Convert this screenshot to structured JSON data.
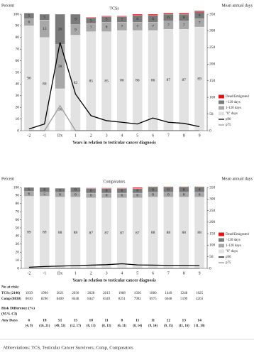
{
  "chart_data": [
    {
      "type": "bar",
      "title": "TCSs",
      "ylabel": "Percent",
      "y2label": "Mean annual days",
      "xlabel": "Years in relation to testicular cancer diagnosis",
      "categories": [
        "-2",
        "-1",
        "Dx",
        "1",
        "2",
        "3",
        "4",
        "5",
        "6",
        "7",
        "8",
        "9"
      ],
      "ylim": [
        0,
        100
      ],
      "yticks": [
        0,
        10,
        20,
        30,
        40,
        50,
        60,
        70,
        80,
        90,
        100
      ],
      "y2lim": [
        0,
        350
      ],
      "y2ticks": [
        0,
        50,
        100,
        150,
        200,
        250,
        300,
        350
      ],
      "stacked": true,
      "series": [
        {
          "name": "Dead/Emigrated",
          "type": "bar",
          "color": "#d7191c",
          "labels": false,
          "values": [
            0,
            0,
            0,
            0,
            0.5,
            0.5,
            0.5,
            1,
            1,
            1,
            1,
            1
          ]
        },
        {
          "name": ">120 days",
          "type": "bar",
          "color": "#7a7a7a",
          "labels": true,
          "values": [
            5,
            5,
            26,
            9,
            5,
            5,
            5,
            6,
            6,
            6,
            6,
            6
          ]
        },
        {
          "name": "1-120 days",
          "type": "bar",
          "color": "#a8a8a8",
          "labels": true,
          "values": [
            6,
            15,
            38,
            9,
            7,
            8,
            7,
            7,
            7,
            7,
            7,
            7
          ]
        },
        {
          "name": "\"0\" days",
          "type": "bar",
          "color": "#e2e2e2",
          "labels": true,
          "values": [
            90,
            80,
            36,
            82,
            85,
            85,
            86,
            86,
            86,
            87,
            87,
            89
          ]
        },
        {
          "name": "p90",
          "type": "line",
          "axis": "y2",
          "color": "#000000",
          "values": [
            5,
            20,
            265,
            110,
            45,
            30,
            25,
            20,
            38,
            25,
            22,
            12
          ]
        },
        {
          "name": "p75",
          "type": "line",
          "axis": "y2",
          "color": "#9a9a9a",
          "values": [
            0,
            0,
            75,
            0,
            0,
            0,
            0,
            0,
            0,
            0,
            0,
            0
          ]
        }
      ]
    },
    {
      "type": "bar",
      "title": "Comparators",
      "ylabel": "Percent",
      "y2label": "Mean annual days",
      "xlabel": "Years in relation to testicular cancer diagnosis",
      "categories": [
        "-2",
        "-1",
        "Dx",
        "1",
        "2",
        "3",
        "4",
        "5",
        "6",
        "7",
        "8",
        "9"
      ],
      "ylim": [
        0,
        100
      ],
      "yticks": [
        0,
        10,
        20,
        30,
        40,
        50,
        60,
        70,
        80,
        90,
        100
      ],
      "y2lim": [
        0,
        350
      ],
      "y2ticks": [
        0,
        50,
        100,
        150,
        200,
        250,
        300,
        350
      ],
      "stacked": true,
      "series": [
        {
          "name": "Dead/Emigrated",
          "type": "bar",
          "color": "#d7191c",
          "labels": false,
          "values": [
            0,
            0,
            0,
            0,
            0.5,
            0.5,
            0.5,
            1,
            1,
            1,
            1,
            1
          ]
        },
        {
          "name": ">120 days",
          "type": "bar",
          "color": "#7a7a7a",
          "labels": true,
          "values": [
            5,
            6,
            5,
            6,
            6,
            6,
            6,
            6,
            6,
            6,
            6,
            6
          ]
        },
        {
          "name": "1-120 days",
          "type": "bar",
          "color": "#a8a8a8",
          "labels": true,
          "values": [
            6,
            5,
            6,
            6,
            6,
            6,
            6,
            6,
            6,
            6,
            6,
            6
          ]
        },
        {
          "name": "\"0\" days",
          "type": "bar",
          "color": "#e2e2e2",
          "labels": true,
          "values": [
            89,
            89,
            88,
            88,
            87,
            87,
            87,
            87,
            88,
            88,
            88,
            88
          ]
        },
        {
          "name": "p90",
          "type": "line",
          "axis": "y2",
          "color": "#000000",
          "values": [
            5,
            8,
            10,
            12,
            14,
            16,
            20,
            15,
            14,
            13,
            13,
            12
          ]
        },
        {
          "name": "p75",
          "type": "line",
          "axis": "y2",
          "color": "#9a9a9a",
          "values": [
            0,
            0,
            0,
            0,
            0,
            0,
            0,
            0,
            0,
            0,
            0,
            0
          ]
        }
      ]
    }
  ],
  "risk_table": {
    "title": "No at risk:",
    "rows": [
      {
        "label": "TCSs (2146)",
        "values": [
          1939,
          1999,
          2021,
          2030,
          2028,
          2013,
          1988,
          1926,
          1880,
          1449,
          1248,
          1025
        ]
      },
      {
        "label": "Comp (8830)",
        "values": [
          8030,
          8296,
          8400,
          8448,
          8447,
          8349,
          8251,
          7992,
          6975,
          6048,
          5199,
          4263
        ]
      }
    ]
  },
  "risk_difference": {
    "title": "Risk Difference (%)",
    "subtitle": "(95% CI)",
    "label": "Any Days",
    "estimates": [
      6,
      18,
      51,
      15,
      10,
      11,
      8,
      11,
      11,
      12,
      13,
      14
    ],
    "cis": [
      "(4, 9)",
      "(16, 21)",
      "(49, 53)",
      "(12, 17)",
      "(8, 13)",
      "(8, 13)",
      "(6, 11)",
      "(8, 14)",
      "(9, 14)",
      "(9, 15)",
      "(11, 16)",
      "(11, 18)"
    ]
  },
  "footnote": "Abbreviations: TCS, Testicular Cancer Survivors; Comp, Comparators"
}
